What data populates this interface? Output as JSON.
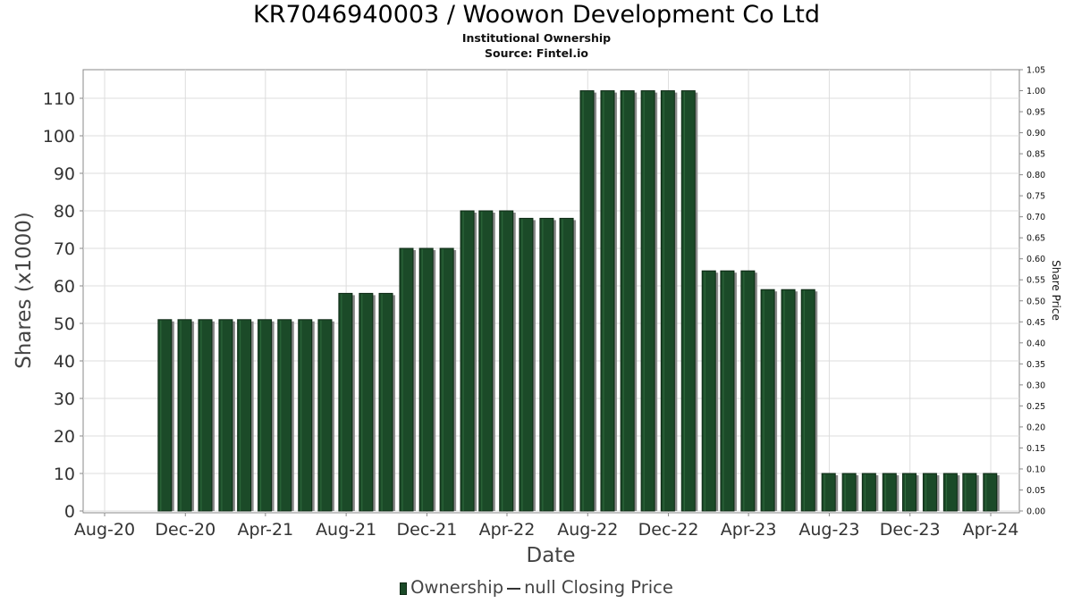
{
  "chart_data": {
    "type": "bar",
    "title": "KR7046940003 / Woowon Development Co Ltd",
    "subtitle": "Institutional Ownership",
    "source": "Source: Fintel.io",
    "xlabel": "Date",
    "ylabel": "Shares (x1000)",
    "y2label": "Share Price",
    "ylim": [
      0,
      115
    ],
    "y2lim": [
      0,
      1.05
    ],
    "yticks": [
      "0",
      "10",
      "20",
      "30",
      "40",
      "50",
      "60",
      "70",
      "80",
      "90",
      "100",
      "110"
    ],
    "y2ticks": [
      "0.00",
      "0.05",
      "0.10",
      "0.15",
      "0.20",
      "0.25",
      "0.30",
      "0.35",
      "0.40",
      "0.45",
      "0.50",
      "0.55",
      "0.60",
      "0.65",
      "0.70",
      "0.75",
      "0.80",
      "0.85",
      "0.90",
      "0.95",
      "1.00",
      "1.05"
    ],
    "xticks": [
      "Aug-20",
      "Dec-20",
      "Apr-21",
      "Aug-21",
      "Dec-21",
      "Apr-22",
      "Aug-22",
      "Dec-22",
      "Apr-23",
      "Aug-23",
      "Dec-23",
      "Apr-24"
    ],
    "xlim": [
      "2020-08-01",
      "2024-04-01"
    ],
    "grid": true,
    "legend_position": "bottom",
    "series": [
      {
        "name": "Ownership",
        "color": "#1b4a28",
        "x": [
          "2020-10-31",
          "2020-11-30",
          "2020-12-31",
          "2021-01-31",
          "2021-02-28",
          "2021-03-31",
          "2021-04-30",
          "2021-05-31",
          "2021-06-30",
          "2021-07-31",
          "2021-08-31",
          "2021-09-30",
          "2021-10-31",
          "2021-11-30",
          "2021-12-31",
          "2022-01-31",
          "2022-02-28",
          "2022-03-31",
          "2022-04-30",
          "2022-05-31",
          "2022-06-30",
          "2022-07-31",
          "2022-08-31",
          "2022-09-30",
          "2022-10-31",
          "2022-11-30",
          "2022-12-31",
          "2023-01-31",
          "2023-02-28",
          "2023-03-31",
          "2023-04-30",
          "2023-05-31",
          "2023-06-30",
          "2023-07-31",
          "2023-08-31",
          "2023-09-30",
          "2023-10-31",
          "2023-11-30",
          "2023-12-31",
          "2024-01-31",
          "2024-02-29",
          "2024-03-31"
        ],
        "values": [
          51,
          51,
          51,
          51,
          51,
          51,
          51,
          51,
          51,
          58,
          58,
          58,
          70,
          70,
          70,
          80,
          80,
          80,
          78,
          78,
          78,
          112,
          112,
          112,
          112,
          112,
          112,
          64,
          64,
          64,
          59,
          59,
          59,
          10,
          10,
          10,
          10,
          10,
          10,
          10,
          10,
          10
        ]
      },
      {
        "name": "null Closing Price",
        "color": "#333333",
        "values": []
      }
    ]
  }
}
